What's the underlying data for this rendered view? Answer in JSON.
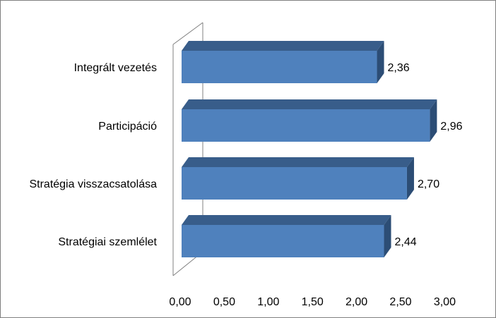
{
  "chart_data": {
    "type": "bar",
    "orientation": "horizontal",
    "style": "3d",
    "categories": [
      "Integrált vezetés",
      "Participáció",
      "Stratégia visszacsatolása",
      "Stratégiai szemlélet"
    ],
    "values": [
      2.36,
      2.96,
      2.7,
      2.44
    ],
    "data_labels": [
      "2,36",
      "2,96",
      "2,70",
      "2,44"
    ],
    "xlim": [
      0,
      3
    ],
    "x_ticks": [
      0,
      0.5,
      1,
      1.5,
      2,
      2.5,
      3
    ],
    "x_tick_labels": [
      "0,00",
      "0,50",
      "1,00",
      "1,50",
      "2,00",
      "2,50",
      "3,00"
    ],
    "title": "",
    "xlabel": "",
    "ylabel": "",
    "grid": false,
    "legend": "none",
    "colors": {
      "bar_front": "#4f81bd",
      "bar_top": "#385d8a",
      "bar_side": "#2c4d75",
      "axis_wall": "#808080"
    }
  }
}
